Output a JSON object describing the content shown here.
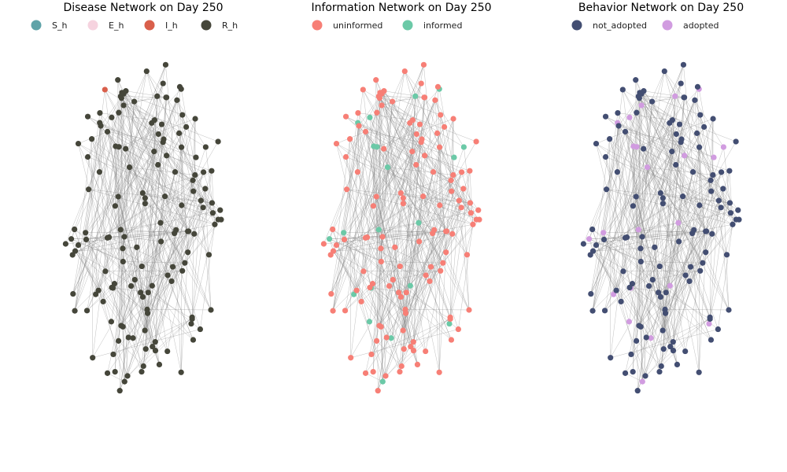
{
  "chart_data": [
    {
      "type": "network",
      "title": "Disease Network on Day 250",
      "legend": [
        {
          "label": "S_h",
          "color": "#5fa3a8"
        },
        {
          "label": "E_h",
          "color": "#f6d3df"
        },
        {
          "label": "I_h",
          "color": "#d95f4b"
        },
        {
          "label": "R_h",
          "color": "#45463a"
        }
      ],
      "node_counts": {
        "S_h": 0,
        "E_h": 0,
        "I_h": 1,
        "R_h": 149
      },
      "legend_position": "top-center"
    },
    {
      "type": "network",
      "title": "Information Network on Day 250",
      "legend": [
        {
          "label": "uninformed",
          "color": "#f77f76"
        },
        {
          "label": "informed",
          "color": "#6bc9a7"
        }
      ],
      "node_counts": {
        "uninformed": 130,
        "informed": 20
      },
      "legend_position": "top-center"
    },
    {
      "type": "network",
      "title": "Behavior Network on Day 250",
      "legend": [
        {
          "label": "not_adopted",
          "color": "#434e72"
        },
        {
          "label": "adopted",
          "color": "#d19ce0"
        }
      ],
      "node_counts": {
        "not_adopted": 128,
        "adopted": 22
      },
      "legend_position": "top-center"
    }
  ]
}
